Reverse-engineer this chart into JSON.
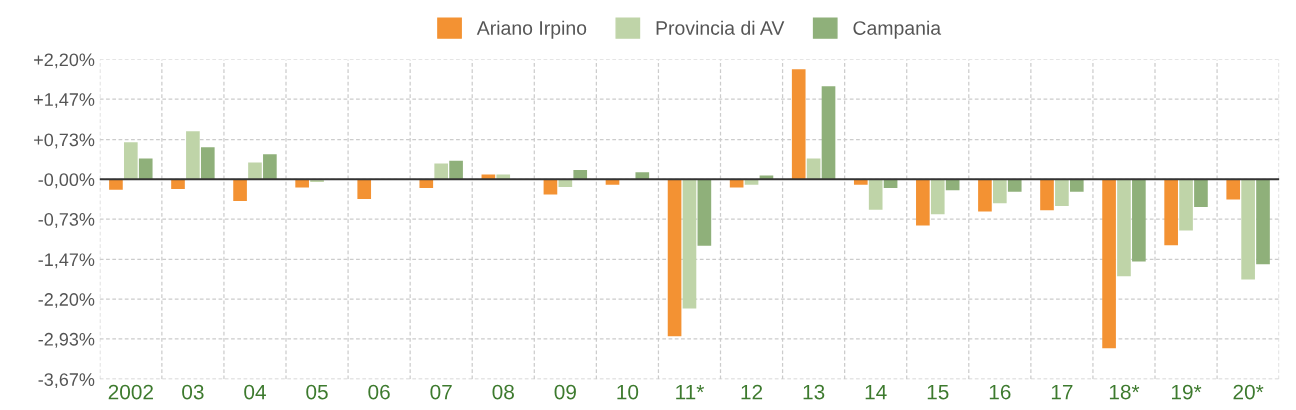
{
  "chart_data": {
    "type": "bar",
    "categories": [
      "2002",
      "03",
      "04",
      "05",
      "06",
      "07",
      "08",
      "09",
      "10",
      "11*",
      "12",
      "13",
      "14",
      "15",
      "16",
      "17",
      "18*",
      "19*",
      "20*"
    ],
    "series": [
      {
        "name": "Ariano Irpino",
        "color": "#f39233",
        "values": [
          -0.19,
          -0.18,
          -0.4,
          -0.15,
          -0.36,
          -0.16,
          0.09,
          -0.28,
          -0.1,
          -2.88,
          -0.15,
          2.02,
          -0.1,
          -0.85,
          -0.59,
          -0.57,
          -3.1,
          -1.21,
          -0.37
        ]
      },
      {
        "name": "Provincia di AV",
        "color": "#bfd4a8",
        "values": [
          0.68,
          0.88,
          0.31,
          -0.05,
          null,
          0.29,
          0.09,
          -0.14,
          0.0,
          -2.37,
          -0.1,
          0.38,
          -0.56,
          -0.64,
          -0.44,
          -0.49,
          -1.78,
          -0.94,
          -1.84
        ]
      },
      {
        "name": "Campania",
        "color": "#8fb07a",
        "values": [
          0.38,
          0.59,
          0.46,
          0.0,
          null,
          0.34,
          0.0,
          0.17,
          0.13,
          -1.22,
          0.07,
          1.71,
          -0.16,
          -0.2,
          -0.23,
          -0.23,
          -1.51,
          -0.51,
          -1.56
        ]
      }
    ],
    "ylim": [
      -3.67,
      2.2
    ],
    "yticks": [
      {
        "value": 2.2,
        "label": "+2,20%"
      },
      {
        "value": 1.47,
        "label": "+1,47%"
      },
      {
        "value": 0.73,
        "label": "+0,73%"
      },
      {
        "value": 0,
        "label": "-0,00%"
      },
      {
        "value": -0.73,
        "label": "-0,73%"
      },
      {
        "value": -1.47,
        "label": "-1,47%"
      },
      {
        "value": -2.2,
        "label": "-2,20%"
      },
      {
        "value": -2.93,
        "label": "-2,93%"
      },
      {
        "value": -3.67,
        "label": "-3,67%"
      }
    ],
    "ref_lines": [
      {
        "axis": "y",
        "value": 0,
        "color": "#333333"
      }
    ],
    "grid": true,
    "legend": "top"
  }
}
